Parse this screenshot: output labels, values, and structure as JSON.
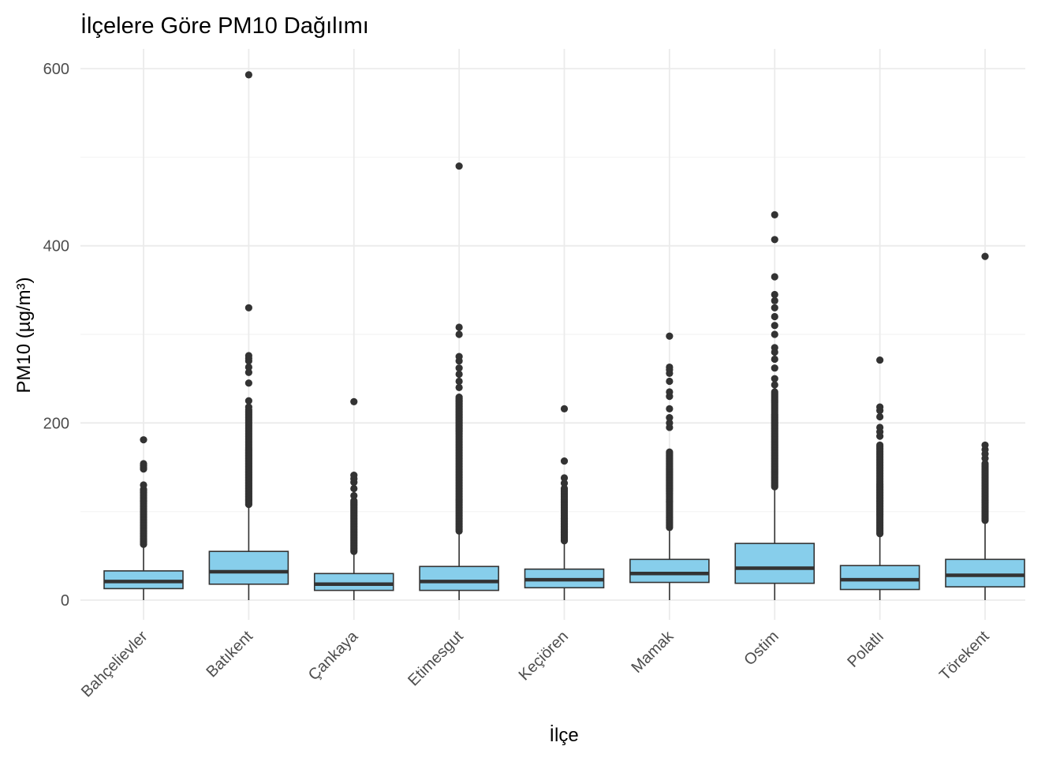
{
  "chart_data": {
    "type": "boxplot",
    "title": "İlçelere Göre PM10 Dağılımı",
    "xlabel": "İlçe",
    "ylabel": "PM10 (µg/m³)",
    "ylim": [
      -25,
      625
    ],
    "yticks": [
      0,
      200,
      400,
      600
    ],
    "grid": true,
    "legend": "none",
    "colors": {
      "box_fill": "#87CEEB",
      "box_stroke": "#333333",
      "outlier": "#333333",
      "grid_major": "#EBEBEB",
      "grid_minor": "#F4F4F4",
      "text": "#4D4D4D",
      "title": "#000000"
    },
    "categories": [
      "Bahçelievler",
      "Batıkent",
      "Çankaya",
      "Etimesgut",
      "Keçiören",
      "Mamak",
      "Ostim",
      "Polatlı",
      "Törekent"
    ],
    "boxes": [
      {
        "category": "Bahçelievler",
        "whisker_low": 0,
        "q1": 13,
        "median": 21,
        "q3": 33,
        "whisker_high": 63,
        "outliers_dense": [
          63,
          125
        ],
        "outliers": [
          130,
          148,
          150,
          152,
          154,
          181
        ]
      },
      {
        "category": "Batıkent",
        "whisker_low": 0,
        "q1": 18,
        "median": 32,
        "q3": 55,
        "whisker_high": 108,
        "outliers_dense": [
          108,
          215
        ],
        "outliers": [
          218,
          225,
          245,
          257,
          263,
          270,
          273,
          276,
          330,
          593
        ]
      },
      {
        "category": "Çankaya",
        "whisker_low": 0,
        "q1": 11,
        "median": 18,
        "q3": 30,
        "whisker_high": 55,
        "outliers_dense": [
          55,
          112
        ],
        "outliers": [
          118,
          126,
          133,
          137,
          141,
          224
        ]
      },
      {
        "category": "Etimesgut",
        "whisker_low": 0,
        "q1": 11,
        "median": 21,
        "q3": 38,
        "whisker_high": 78,
        "outliers_dense": [
          78,
          230
        ],
        "outliers": [
          240,
          247,
          255,
          262,
          270,
          275,
          300,
          308,
          490
        ]
      },
      {
        "category": "Keçiören",
        "whisker_low": 0,
        "q1": 14,
        "median": 23,
        "q3": 35,
        "whisker_high": 67,
        "outliers_dense": [
          67,
          127
        ],
        "outliers": [
          132,
          138,
          157,
          216
        ]
      },
      {
        "category": "Mamak",
        "whisker_low": 0,
        "q1": 20,
        "median": 30,
        "q3": 46,
        "whisker_high": 82,
        "outliers_dense": [
          82,
          168
        ],
        "outliers": [
          195,
          200,
          206,
          216,
          230,
          235,
          247,
          256,
          260,
          263,
          298
        ]
      },
      {
        "category": "Ostim",
        "whisker_low": 0,
        "q1": 19,
        "median": 36,
        "q3": 64,
        "whisker_high": 128,
        "outliers_dense": [
          128,
          235
        ],
        "outliers": [
          243,
          250,
          262,
          272,
          280,
          285,
          300,
          310,
          320,
          330,
          338,
          345,
          365,
          407,
          435
        ]
      },
      {
        "category": "Polatlı",
        "whisker_low": 0,
        "q1": 12,
        "median": 23,
        "q3": 39,
        "whisker_high": 75,
        "outliers_dense": [
          75,
          175
        ],
        "outliers": [
          185,
          190,
          195,
          207,
          214,
          218,
          271
        ]
      },
      {
        "category": "Törekent",
        "whisker_low": 0,
        "q1": 15,
        "median": 28,
        "q3": 46,
        "whisker_high": 90,
        "outliers_dense": [
          90,
          155
        ],
        "outliers": [
          160,
          165,
          170,
          175,
          388
        ]
      }
    ]
  }
}
